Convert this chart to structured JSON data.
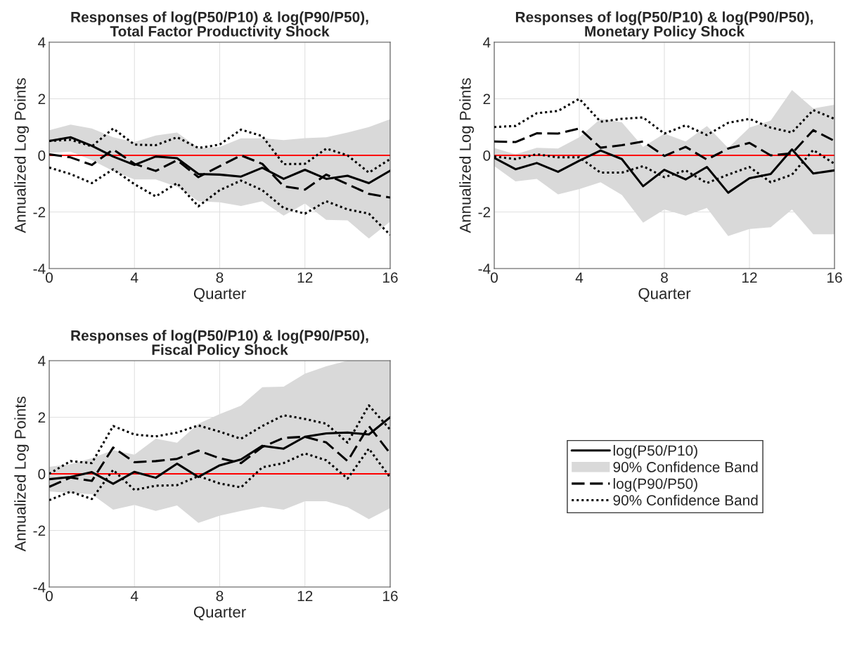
{
  "chart_data": [
    {
      "type": "line",
      "title": "Responses of log(P50/P10) & log(P90/P50),\nTotal Factor Productivity Shock",
      "xlabel": "Quarter",
      "ylabel": "Annualized Log Points",
      "x": [
        0,
        1,
        2,
        3,
        4,
        5,
        6,
        7,
        8,
        9,
        10,
        11,
        12,
        13,
        14,
        15,
        16
      ],
      "xlim": [
        0,
        16
      ],
      "xticks": [
        0,
        4,
        8,
        12,
        16
      ],
      "ylim": [
        -4,
        4
      ],
      "yticks": [
        -4,
        -2,
        0,
        2,
        4
      ],
      "grid": true,
      "ref_lines": [
        {
          "axis": "y",
          "value": 0,
          "color": "#ff0000"
        }
      ],
      "series": [
        {
          "color": "#000000",
          "line_style": "solid",
          "values": [
            0.51,
            0.64,
            0.34,
            -0.04,
            -0.34,
            -0.04,
            -0.1,
            -0.66,
            -0.68,
            -0.75,
            -0.44,
            -0.83,
            -0.51,
            -0.83,
            -0.72,
            -0.98,
            -0.54
          ],
          "lower": [
            0.09,
            0.13,
            -0.17,
            -0.55,
            -0.85,
            -0.85,
            -1.11,
            -1.62,
            -1.66,
            -1.79,
            -1.62,
            -2.13,
            -1.7,
            -2.28,
            -2.3,
            -2.94,
            -2.34
          ],
          "upper": [
            0.89,
            1.09,
            0.95,
            0.64,
            0.47,
            0.7,
            0.81,
            0.26,
            0.3,
            0.6,
            0.6,
            0.54,
            0.61,
            0.64,
            0.81,
            1.0,
            1.28
          ]
        },
        {
          "color": "#000000",
          "line_style": "dashed",
          "values": [
            0.04,
            -0.07,
            -0.34,
            0.21,
            -0.3,
            -0.55,
            -0.17,
            -0.77,
            -0.38,
            0.0,
            -0.3,
            -1.09,
            -1.21,
            -0.68,
            -1.02,
            -1.36,
            -1.49
          ]
        },
        {
          "color": "#000000",
          "line_style": "dotted",
          "values": [
            0.51,
            0.55,
            0.32,
            0.95,
            0.38,
            0.36,
            0.64,
            0.26,
            0.38,
            0.91,
            0.68,
            -0.31,
            -0.3,
            0.24,
            0.0,
            -0.61,
            -0.13
          ]
        },
        {
          "color": "#000000",
          "line_style": "dotted",
          "values": [
            -0.43,
            -0.66,
            -0.98,
            -0.49,
            -1.02,
            -1.45,
            -0.98,
            -1.8,
            -1.23,
            -0.89,
            -1.23,
            -1.86,
            -2.06,
            -1.62,
            -1.91,
            -2.06,
            -2.81
          ]
        }
      ]
    },
    {
      "type": "line",
      "title": "Responses of log(P50/P10) & log(P90/P50),\nMonetary Policy Shock",
      "xlabel": "Quarter",
      "ylabel": "Annualized Log Points",
      "x": [
        0,
        1,
        2,
        3,
        4,
        5,
        6,
        7,
        8,
        9,
        10,
        11,
        12,
        13,
        14,
        15,
        16
      ],
      "xlim": [
        0,
        16
      ],
      "xticks": [
        0,
        4,
        8,
        12,
        16
      ],
      "ylim": [
        -4,
        4
      ],
      "yticks": [
        -4,
        -2,
        0,
        2,
        4
      ],
      "grid": true,
      "ref_lines": [
        {
          "axis": "y",
          "value": 0,
          "color": "#ff0000"
        }
      ],
      "series": [
        {
          "color": "#000000",
          "line_style": "solid",
          "values": [
            -0.09,
            -0.49,
            -0.27,
            -0.58,
            -0.19,
            0.17,
            -0.13,
            -1.09,
            -0.51,
            -0.85,
            -0.41,
            -1.32,
            -0.81,
            -0.66,
            0.21,
            -0.64,
            -0.53
          ],
          "lower": [
            -0.38,
            -0.92,
            -0.83,
            -1.38,
            -1.19,
            -0.95,
            -1.4,
            -2.38,
            -1.91,
            -2.13,
            -1.86,
            -2.85,
            -2.6,
            -2.54,
            -1.91,
            -2.79,
            -2.79
          ],
          "upper": [
            0.26,
            0.04,
            0.27,
            0.24,
            0.64,
            1.29,
            1.17,
            0.3,
            0.77,
            0.49,
            1.04,
            0.26,
            0.98,
            1.23,
            2.31,
            1.66,
            1.79
          ]
        },
        {
          "color": "#000000",
          "line_style": "dashed",
          "values": [
            0.49,
            0.47,
            0.78,
            0.77,
            0.95,
            0.27,
            0.36,
            0.49,
            -0.02,
            0.3,
            -0.15,
            0.24,
            0.44,
            0.0,
            0.07,
            0.89,
            0.51
          ]
        },
        {
          "color": "#000000",
          "line_style": "dotted",
          "values": [
            1.0,
            1.04,
            1.49,
            1.57,
            2.0,
            1.19,
            1.29,
            1.34,
            0.77,
            1.06,
            0.72,
            1.15,
            1.29,
            0.98,
            0.81,
            1.6,
            1.29
          ]
        },
        {
          "color": "#000000",
          "line_style": "dotted",
          "values": [
            -0.04,
            -0.13,
            0.04,
            -0.07,
            -0.07,
            -0.61,
            -0.61,
            -0.38,
            -0.77,
            -0.53,
            -0.98,
            -0.68,
            -0.41,
            -0.95,
            -0.68,
            0.19,
            -0.3
          ]
        }
      ]
    },
    {
      "type": "line",
      "title": "Responses of log(P50/P10) & log(P90/P50),\nFiscal Policy Shock",
      "xlabel": "Quarter",
      "ylabel": "Annualized Log Points",
      "x": [
        0,
        1,
        2,
        3,
        4,
        5,
        6,
        7,
        8,
        9,
        10,
        11,
        12,
        13,
        14,
        15,
        16
      ],
      "xlim": [
        0,
        16
      ],
      "xticks": [
        0,
        4,
        8,
        12,
        16
      ],
      "ylim": [
        -4,
        4
      ],
      "yticks": [
        -4,
        -2,
        0,
        2,
        4
      ],
      "grid": true,
      "legend": "right",
      "annotations": [
        "90% Confidence Band"
      ],
      "ref_lines": [
        {
          "axis": "y",
          "value": 0,
          "color": "#ff0000"
        }
      ],
      "series": [
        {
          "name": "log(P50/P10)",
          "color": "#000000",
          "line_style": "solid",
          "values": [
            -0.19,
            -0.11,
            0.06,
            -0.35,
            0.07,
            -0.14,
            0.36,
            -0.11,
            0.3,
            0.51,
            0.99,
            0.89,
            1.31,
            1.43,
            1.46,
            1.39,
            2.0
          ],
          "lower": [
            -0.62,
            -0.68,
            -0.72,
            -1.27,
            -1.1,
            -1.31,
            -1.12,
            -1.73,
            -1.48,
            -1.31,
            -1.16,
            -1.27,
            -0.97,
            -0.97,
            -1.18,
            -1.6,
            -1.21
          ],
          "upper": [
            0.25,
            0.34,
            0.55,
            0.84,
            0.68,
            1.24,
            1.1,
            1.77,
            2.11,
            2.41,
            3.06,
            3.08,
            3.54,
            3.8,
            4.0,
            4.0,
            4.0
          ]
        },
        {
          "name": "log(P90/P50)",
          "color": "#000000",
          "line_style": "dashed",
          "values": [
            -0.46,
            -0.13,
            -0.25,
            0.93,
            0.41,
            0.45,
            0.53,
            0.82,
            0.55,
            0.38,
            0.95,
            1.27,
            1.31,
            1.11,
            0.45,
            1.69,
            0.72
          ]
        },
        {
          "name": "90% Confidence Band",
          "color": "#000000",
          "line_style": "dotted",
          "values": [
            0.0,
            0.45,
            0.38,
            1.69,
            1.39,
            1.32,
            1.46,
            1.71,
            1.49,
            1.24,
            1.69,
            2.07,
            1.94,
            1.77,
            1.1,
            2.42,
            1.56
          ]
        },
        {
          "color": "#000000",
          "line_style": "dotted",
          "values": [
            -0.93,
            -0.63,
            -0.89,
            0.14,
            -0.57,
            -0.42,
            -0.4,
            -0.08,
            -0.34,
            -0.48,
            0.23,
            0.38,
            0.72,
            0.48,
            -0.17,
            0.89,
            -0.13
          ]
        }
      ]
    }
  ]
}
